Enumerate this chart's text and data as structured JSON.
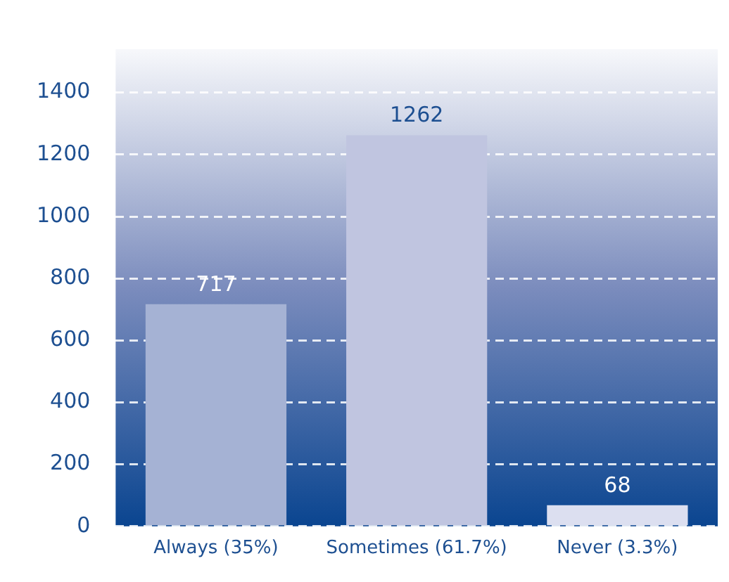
{
  "chart_data": {
    "type": "bar",
    "categories": [
      "Always (35%)",
      "Sometimes (61.7%)",
      "Never (3.3%)"
    ],
    "values": [
      717,
      1262,
      68
    ],
    "colors": [
      "#a5b2d4",
      "#c0c5e0",
      "#dcdff0"
    ],
    "ylim": [
      0,
      1540
    ],
    "yticks": [
      0,
      200,
      400,
      600,
      800,
      1000,
      1200,
      1400
    ],
    "grid": "y",
    "data_labels": true,
    "legend": false
  }
}
